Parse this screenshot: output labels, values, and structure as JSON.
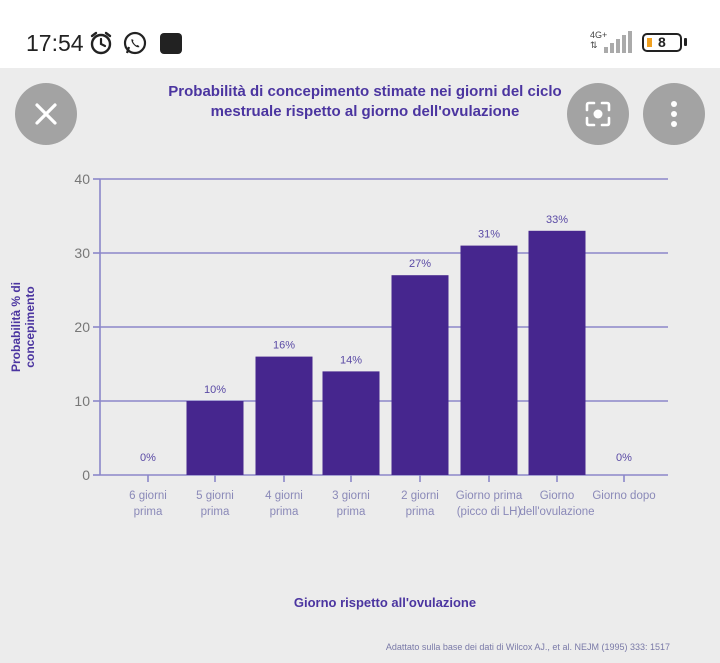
{
  "status_bar": {
    "time": "17:54",
    "network": "4G+",
    "battery": "8",
    "icons": [
      "alarm-clock-icon",
      "whatsapp-icon",
      "notification-square-icon",
      "signal-icon"
    ]
  },
  "overlay": {
    "close_icon": "close-icon",
    "lens_icon": "lens-search-icon",
    "menu_icon": "more-vertical-icon"
  },
  "chart_data": {
    "type": "bar",
    "title_line1": "Probabilità di concepimento stimate nei giorni del ciclo",
    "title_line2": "mestruale rispetto al giorno dell'ovulazione",
    "xlabel": "Giorno rispetto all'ovulazione",
    "ylabel": "Probabilità % di concepimento",
    "ylim": [
      0,
      40
    ],
    "yticks": [
      "0",
      "10",
      "20",
      "30",
      "40"
    ],
    "categories": [
      [
        "6 giorni",
        "prima"
      ],
      [
        "5 giorni",
        "prima"
      ],
      [
        "4 giorni",
        "prima"
      ],
      [
        "3 giorni",
        "prima"
      ],
      [
        "2 giorni",
        "prima"
      ],
      [
        "Giorno prima",
        "(picco di LH)"
      ],
      [
        "Giorno",
        "dell'ovulazione"
      ],
      [
        "Giorno dopo",
        ""
      ]
    ],
    "values": [
      0,
      10,
      16,
      14,
      27,
      31,
      33,
      0
    ],
    "value_labels": [
      "0%",
      "10%",
      "16%",
      "14%",
      "27%",
      "31%",
      "33%",
      "0%"
    ],
    "source": "Adattato sulla base dei dati di Wilcox AJ., et al. NEJM (1995) 333: 1517",
    "colors": {
      "bar": "#46268e",
      "axis": "#8b87c9",
      "text": "#4b35a0"
    }
  }
}
